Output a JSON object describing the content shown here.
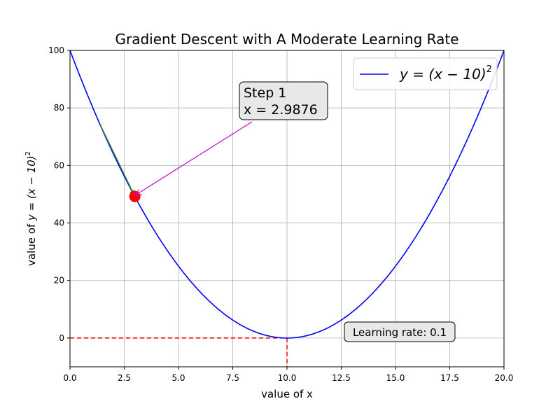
{
  "chart_data": {
    "type": "line",
    "title": "Gradient Descent with A Moderate Learning Rate",
    "xlabel": "value of x",
    "ylabel_prefix": "value of ",
    "ylabel_math": "y = (x − 10)",
    "ylabel_exp": "2",
    "xlim": [
      0,
      20
    ],
    "ylim": [
      -10,
      100
    ],
    "x_ticks": [
      0,
      2.5,
      5,
      7.5,
      10,
      12.5,
      15,
      17.5,
      20
    ],
    "x_tick_labels": [
      "0.0",
      "2.5",
      "5.0",
      "7.5",
      "10.0",
      "12.5",
      "15.0",
      "17.5",
      "20.0"
    ],
    "y_ticks": [
      0,
      20,
      40,
      60,
      80,
      100
    ],
    "y_tick_labels": [
      "0",
      "20",
      "40",
      "60",
      "80",
      "100"
    ],
    "grid": true,
    "legend_position": "top-right",
    "series": [
      {
        "name_math": "y = (x − 10)",
        "name_exp": "2",
        "color": "#0000ff",
        "function": "(x - 10)^2",
        "x_range": [
          0,
          20
        ]
      }
    ],
    "reference_lines": {
      "color": "#ff0000",
      "style": "dashed",
      "point": [
        10,
        0
      ]
    },
    "point": {
      "x": 2.9876,
      "y": 49.2,
      "color": "#ff0000"
    },
    "step_arrow": {
      "from": [
        1.4,
        74.0
      ],
      "to": [
        2.9876,
        49.2
      ],
      "color": "#2e7d32"
    },
    "annotation": {
      "line1": "Step 1",
      "line2": "x = 2.9876",
      "arrow_color": "#cc00cc"
    },
    "learning_rate_label": "Learning rate: 0.1"
  }
}
